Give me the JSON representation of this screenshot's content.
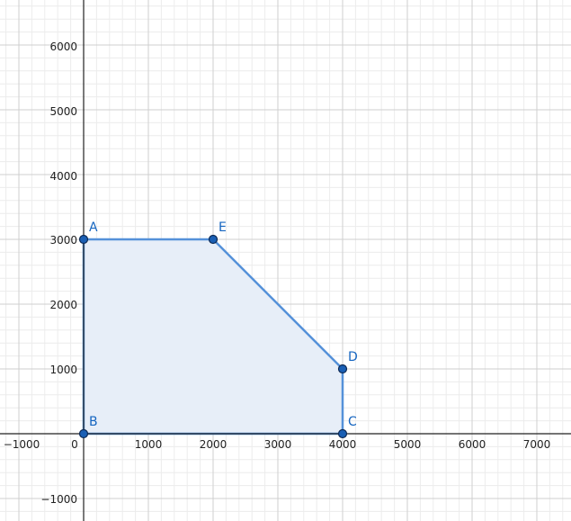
{
  "x_ticks": [
    "−1000",
    "0",
    "1000",
    "2000",
    "3000",
    "4000",
    "5000",
    "6000",
    "7000"
  ],
  "y_ticks": [
    "6000",
    "5000",
    "4000",
    "3000",
    "2000",
    "1000",
    "−1000"
  ],
  "points": [
    {
      "label": "A",
      "x": 0,
      "y": 3000
    },
    {
      "label": "E",
      "x": 2000,
      "y": 3000
    },
    {
      "label": "D",
      "x": 4000,
      "y": 1000
    },
    {
      "label": "C",
      "x": 4000,
      "y": 0
    },
    {
      "label": "B",
      "x": 0,
      "y": 0
    }
  ],
  "colors": {
    "polygon_fill": "#e7eef8",
    "polygon_stroke": "#5591d9",
    "point_fill": "#1a5fb4",
    "point_stroke": "#0d2a55",
    "label": "#1565C0",
    "grid_minor": "#ececec",
    "grid_major": "#cfcfcf",
    "axis": "#222222"
  }
}
